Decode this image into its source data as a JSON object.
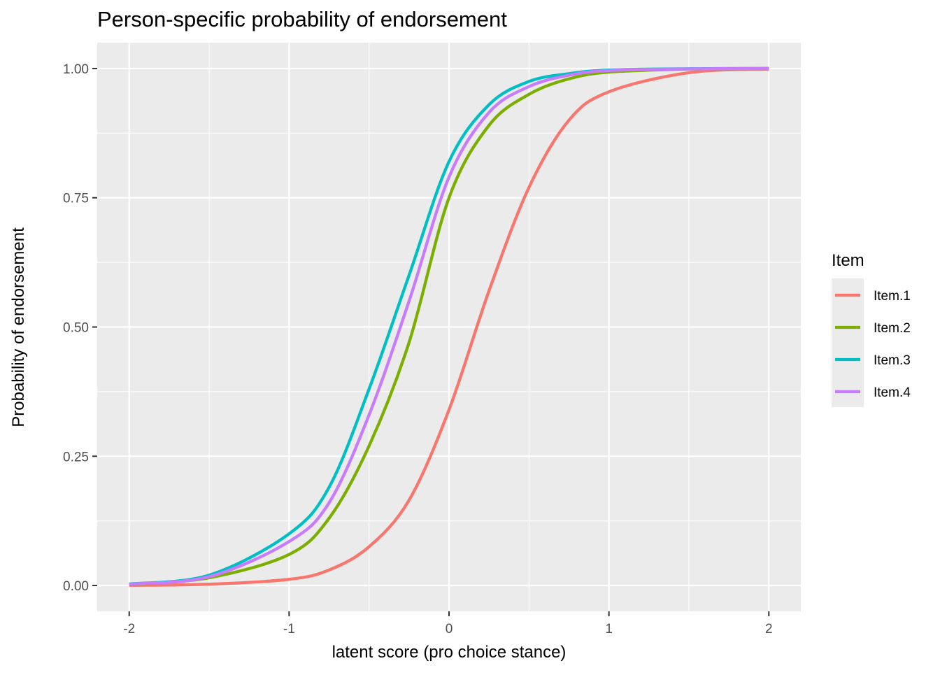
{
  "chart_data": {
    "type": "line",
    "title": "Person-specific probability of endorsement",
    "xlabel": "latent score (pro choice stance)",
    "ylabel": "Probability of endorsement",
    "xlim": [
      -2.2,
      2.2
    ],
    "ylim": [
      -0.05,
      1.05
    ],
    "x_ticks": [
      -2,
      -1,
      0,
      1,
      2
    ],
    "x_tick_labels": [
      "-2",
      "-1",
      "0",
      "1",
      "2"
    ],
    "y_ticks": [
      0,
      0.25,
      0.5,
      0.75,
      1
    ],
    "y_tick_labels": [
      "0.00",
      "0.25",
      "0.50",
      "0.75",
      "1.00"
    ],
    "grid": true,
    "legend": {
      "title": "Item",
      "position": "right"
    },
    "series": [
      {
        "name": "Item.1",
        "color": "#F8766D",
        "points": [
          [
            -2,
            0.0003
          ],
          [
            -1.5,
            0.0025
          ],
          [
            -1,
            0.012
          ],
          [
            -0.75,
            0.03
          ],
          [
            -0.5,
            0.075
          ],
          [
            -0.25,
            0.165
          ],
          [
            0,
            0.34
          ],
          [
            0.25,
            0.57
          ],
          [
            0.5,
            0.77
          ],
          [
            0.75,
            0.9
          ],
          [
            1,
            0.955
          ],
          [
            1.5,
            0.992
          ],
          [
            2,
            0.999
          ]
        ]
      },
      {
        "name": "Item.2",
        "color": "#7CAE00",
        "points": [
          [
            -2,
            0.002
          ],
          [
            -1.5,
            0.015
          ],
          [
            -1,
            0.06
          ],
          [
            -0.75,
            0.13
          ],
          [
            -0.5,
            0.27
          ],
          [
            -0.25,
            0.47
          ],
          [
            0,
            0.75
          ],
          [
            0.25,
            0.89
          ],
          [
            0.5,
            0.95
          ],
          [
            0.75,
            0.98
          ],
          [
            1,
            0.993
          ],
          [
            1.5,
            0.999
          ],
          [
            2,
            1.0
          ]
        ]
      },
      {
        "name": "Item.3",
        "color": "#00BFC4",
        "points": [
          [
            -2,
            0.003
          ],
          [
            -1.5,
            0.02
          ],
          [
            -1,
            0.1
          ],
          [
            -0.75,
            0.19
          ],
          [
            -0.5,
            0.38
          ],
          [
            -0.25,
            0.6
          ],
          [
            0,
            0.82
          ],
          [
            0.25,
            0.93
          ],
          [
            0.5,
            0.975
          ],
          [
            0.75,
            0.99
          ],
          [
            1,
            0.997
          ],
          [
            1.5,
            0.9995
          ],
          [
            2,
            1.0
          ]
        ]
      },
      {
        "name": "Item.4",
        "color": "#C77CFF",
        "points": [
          [
            -2,
            0.0025
          ],
          [
            -1.5,
            0.017
          ],
          [
            -1,
            0.085
          ],
          [
            -0.75,
            0.16
          ],
          [
            -0.5,
            0.33
          ],
          [
            -0.25,
            0.55
          ],
          [
            0,
            0.79
          ],
          [
            0.25,
            0.915
          ],
          [
            0.5,
            0.965
          ],
          [
            0.75,
            0.987
          ],
          [
            1,
            0.996
          ],
          [
            1.5,
            0.9993
          ],
          [
            2,
            1.0
          ]
        ]
      }
    ]
  }
}
